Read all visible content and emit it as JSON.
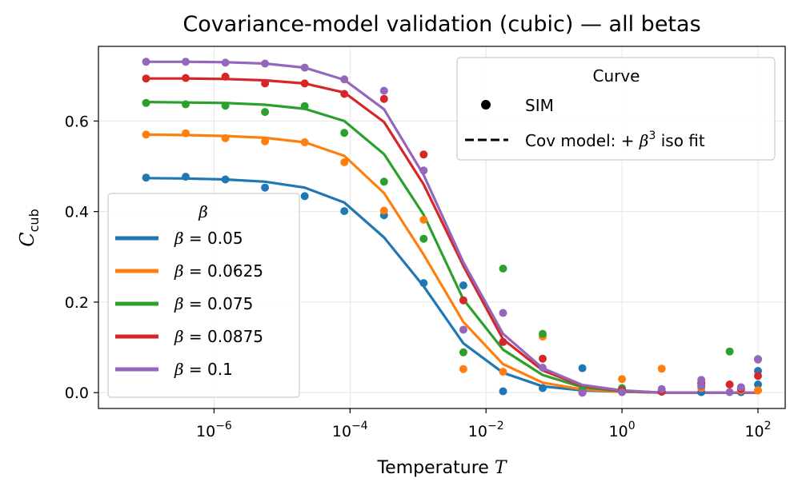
{
  "chart_data": {
    "type": "line",
    "title": "Covariance-model validation (cubic) — all betas",
    "xlabel": "Temperature",
    "xlabel_symbol": "T",
    "ylabel_main": "C",
    "ylabel_sub": "cub",
    "x_scale": "log10",
    "xlim_log10": [
      -7.7,
      2.4
    ],
    "ylim": [
      -0.035,
      0.765
    ],
    "grid": true,
    "x_ticks": [
      {
        "exp": -6,
        "base": "10",
        "exp_label": "−6"
      },
      {
        "exp": -4,
        "base": "10",
        "exp_label": "−4"
      },
      {
        "exp": -2,
        "base": "10",
        "exp_label": "−2"
      },
      {
        "exp": 0,
        "base": "10",
        "exp_label": "0"
      },
      {
        "exp": 2,
        "base": "10",
        "exp_label": "2"
      }
    ],
    "y_ticks": [
      {
        "value": 0.0,
        "label": "0.0"
      },
      {
        "value": 0.2,
        "label": "0.2"
      },
      {
        "value": 0.4,
        "label": "0.4"
      },
      {
        "value": 0.6,
        "label": "0.6"
      }
    ],
    "x_log10": [
      -7.0,
      -6.4167,
      -5.8333,
      -5.25,
      -4.6667,
      -4.0833,
      -3.5,
      -2.9167,
      -2.3333,
      -1.75,
      -1.1667,
      -0.5833,
      0.0,
      0.5833,
      1.1667,
      1.75,
      2.0
    ],
    "series": [
      {
        "name": "β = 0.05",
        "color": "#1f77b4",
        "model": [
          0.474,
          0.473,
          0.471,
          0.466,
          0.453,
          0.42,
          0.343,
          0.235,
          0.109,
          0.044,
          0.014,
          0.005,
          0.002,
          0.0,
          0.0,
          0.0,
          0.0
        ],
        "sim": [
          0.475,
          0.477,
          0.471,
          0.453,
          0.434,
          0.401,
          0.392,
          0.242,
          0.237,
          0.003,
          0.01,
          0.054,
          0.004,
          0.002,
          0.001,
          0.001,
          0.048,
          0.018
        ]
      },
      {
        "name": "β = 0.0625",
        "color": "#ff7f0e",
        "model": [
          0.57,
          0.569,
          0.567,
          0.563,
          0.553,
          0.523,
          0.441,
          0.305,
          0.156,
          0.063,
          0.022,
          0.007,
          0.002,
          0.0,
          0.0,
          0.0,
          0.0
        ],
        "sim": [
          0.57,
          0.573,
          0.562,
          0.555,
          0.553,
          0.509,
          0.402,
          0.382,
          0.052,
          0.046,
          0.124,
          0.001,
          0.03,
          0.053,
          0.01,
          0.005,
          0.005,
          0.005
        ]
      },
      {
        "name": "β = 0.075",
        "color": "#2ca02c",
        "model": [
          0.642,
          0.641,
          0.64,
          0.636,
          0.627,
          0.6,
          0.527,
          0.393,
          0.206,
          0.095,
          0.039,
          0.012,
          0.003,
          0.0,
          0.0,
          0.0,
          0.0
        ],
        "sim": [
          0.64,
          0.637,
          0.634,
          0.62,
          0.633,
          0.574,
          0.466,
          0.34,
          0.089,
          0.274,
          0.13,
          0.005,
          0.01,
          0.004,
          0.015,
          0.01,
          0.091,
          0.074
        ]
      },
      {
        "name": "β = 0.0875",
        "color": "#d62728",
        "model": [
          0.694,
          0.694,
          0.693,
          0.69,
          0.683,
          0.663,
          0.598,
          0.46,
          0.28,
          0.118,
          0.049,
          0.015,
          0.004,
          0.0,
          0.0,
          0.0,
          0.0
        ],
        "sim": [
          0.694,
          0.695,
          0.698,
          0.683,
          0.683,
          0.66,
          0.649,
          0.526,
          0.204,
          0.112,
          0.075,
          0.0,
          0.005,
          0.002,
          0.02,
          0.008,
          0.022,
          0.018,
          0.037
        ]
      },
      {
        "name": "β = 0.1",
        "color": "#9467bd",
        "model": [
          0.731,
          0.731,
          0.73,
          0.727,
          0.718,
          0.691,
          0.626,
          0.481,
          0.288,
          0.13,
          0.054,
          0.017,
          0.005,
          0.0,
          0.0,
          0.0,
          0.0
        ],
        "sim": [
          0.731,
          0.731,
          0.729,
          0.727,
          0.718,
          0.692,
          0.667,
          0.491,
          0.139,
          0.176,
          0.055,
          0.0,
          0.001,
          0.008,
          0.028,
          0.012,
          0.015,
          0.001,
          0.073
        ]
      }
    ],
    "sim_x_log10": [
      [
        -7.0,
        -6.4167,
        -5.8333,
        -5.25,
        -4.6667,
        -4.0833,
        -3.5,
        -2.9167,
        -2.3333,
        -1.75,
        -1.1667,
        -0.5833,
        0.0,
        0.5833,
        1.1667,
        1.75,
        2.0,
        2.0
      ],
      [
        -7.0,
        -6.4167,
        -5.8333,
        -5.25,
        -4.6667,
        -4.0833,
        -3.5,
        -2.9167,
        -2.3333,
        -1.75,
        -1.1667,
        -0.5833,
        0.0,
        0.5833,
        1.1667,
        1.75,
        2.0,
        2.0
      ],
      [
        -7.0,
        -6.4167,
        -5.8333,
        -5.25,
        -4.6667,
        -4.0833,
        -3.5,
        -2.9167,
        -2.3333,
        -1.75,
        -1.1667,
        -0.5833,
        0.0,
        0.5833,
        1.1667,
        1.75,
        1.5833,
        2.0
      ],
      [
        -7.0,
        -6.4167,
        -5.8333,
        -5.25,
        -4.6667,
        -4.0833,
        -3.5,
        -2.9167,
        -2.3333,
        -1.75,
        -1.1667,
        -0.5833,
        0.0,
        0.5833,
        1.1667,
        1.75,
        1.1667,
        1.5833,
        2.0
      ],
      [
        -7.0,
        -6.4167,
        -5.8333,
        -5.25,
        -4.6667,
        -4.0833,
        -3.5,
        -2.9167,
        -2.3333,
        -1.75,
        -1.1667,
        -0.5833,
        0.0,
        0.5833,
        1.1667,
        1.75,
        1.1667,
        1.5833,
        2.0
      ]
    ],
    "legend_curve": {
      "title": "Curve",
      "location": "top-right",
      "items": [
        {
          "label": "SIM",
          "marker": "dot"
        },
        {
          "label_prefix": "Cov model: + ",
          "symbol": "β",
          "sup": "3",
          "label_suffix": " iso fit",
          "marker": "dashed-line"
        }
      ]
    },
    "legend_beta": {
      "title": "β",
      "location": "center-left",
      "items": [
        {
          "symbol": "β",
          "label": " = 0.05",
          "color": "#1f77b4"
        },
        {
          "symbol": "β",
          "label": " = 0.0625",
          "color": "#ff7f0e"
        },
        {
          "symbol": "β",
          "label": " = 0.075",
          "color": "#2ca02c"
        },
        {
          "symbol": "β",
          "label": " = 0.0875",
          "color": "#d62728"
        },
        {
          "symbol": "β",
          "label": " = 0.1",
          "color": "#9467bd"
        }
      ]
    }
  }
}
